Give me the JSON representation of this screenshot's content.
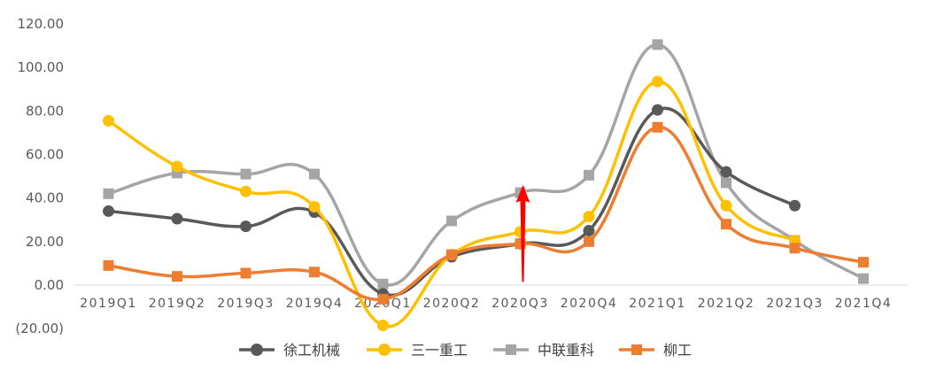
{
  "chart_data": {
    "type": "line",
    "categories": [
      "2019Q1",
      "2019Q2",
      "2019Q3",
      "2019Q4",
      "2020Q1",
      "2020Q2",
      "2020Q3",
      "2020Q4",
      "2021Q1",
      "2021Q2",
      "2021Q3",
      "2021Q4"
    ],
    "y_ticks": [
      "120.00",
      "100.00",
      "80.00",
      "60.00",
      "40.00",
      "20.00",
      "0.00",
      "(20.00)"
    ],
    "ylim": [
      -20,
      120
    ],
    "grid": false,
    "legend_position": "bottom",
    "series": [
      {
        "name": "徐工机械",
        "color": "#595959",
        "marker": "circle",
        "values": [
          34,
          30.5,
          27,
          33.5,
          -4,
          13,
          19,
          25,
          80.5,
          52,
          36.5,
          null
        ]
      },
      {
        "name": "三一重工",
        "color": "#FFC000",
        "marker": "circle",
        "values": [
          75.5,
          54.5,
          43,
          36,
          -18.5,
          14,
          24.5,
          31.5,
          93.5,
          36.5,
          20.5,
          null
        ]
      },
      {
        "name": "中联重科",
        "color": "#A5A5A5",
        "marker": "square",
        "values": [
          42,
          51.5,
          51,
          51,
          0.5,
          29.5,
          42.5,
          50.5,
          110.5,
          47,
          20.5,
          3
        ]
      },
      {
        "name": "柳工",
        "color": "#ED7D31",
        "marker": "square",
        "values": [
          9,
          4,
          5.5,
          6,
          -6.5,
          14,
          19,
          20,
          72.5,
          28,
          17,
          10.5
        ]
      }
    ],
    "annotations": [
      {
        "type": "arrow",
        "color": "#FF0000",
        "x_category": "2020Q3",
        "from_value": 1.5,
        "to_value": 46
      }
    ]
  }
}
